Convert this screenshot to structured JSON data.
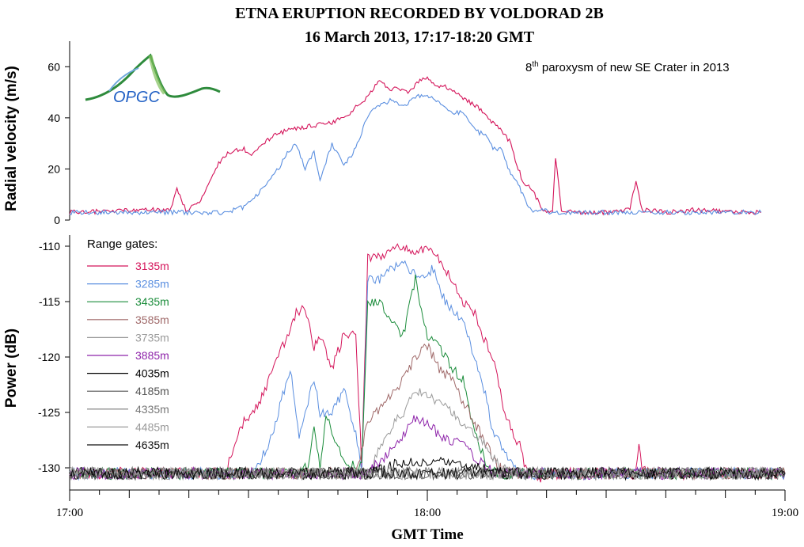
{
  "chart_data": {
    "type": "line",
    "title": "ETNA ERUPTION RECORDED BY VOLDORAD 2B",
    "subtitle": "16 March 2013, 17:17-18:20 GMT",
    "annotation": {
      "sup": "th",
      "base": "8",
      "text": " paroxysm of new SE Crater in 2013"
    },
    "logo_text": "OPGC",
    "xlabel": "GMT Time",
    "x_ticks": [
      "17:00",
      "18:00",
      "19:00"
    ],
    "xlim_minutes": [
      0,
      120
    ],
    "panels": [
      {
        "ylabel": "Radial velocity (m/s)",
        "ylim": [
          0,
          70
        ],
        "yticks": [
          0,
          20,
          40,
          60
        ],
        "series": [
          {
            "name": "3135m",
            "color": "#d4145a",
            "x": [
              0,
              14,
              17,
              18,
              19.5,
              20.5,
              22,
              25,
              26.5,
              29,
              30.5,
              33,
              35,
              38,
              41,
              44,
              47,
              50,
              52,
              53.5,
              55,
              57,
              58.5,
              60,
              61.5,
              63,
              66,
              69,
              71,
              72.5,
              74,
              75,
              76,
              77.5,
              78.5,
              79.5,
              81,
              81.5,
              82.5,
              83,
              84,
              86,
              90,
              94,
              95,
              96,
              100,
              105,
              112,
              116
            ],
            "y": [
              3,
              4,
              4,
              12,
              4,
              5,
              8,
              22,
              26,
              28,
              26,
              31,
              34,
              36,
              37,
              38,
              42,
              48,
              55,
              51,
              52,
              50,
              54,
              56,
              53,
              52,
              48,
              43,
              38,
              35,
              30,
              22,
              15,
              12,
              8,
              3,
              4,
              25,
              4,
              3,
              4,
              3,
              3,
              4,
              16,
              4,
              3,
              4,
              3,
              3
            ]
          },
          {
            "name": "3285m",
            "color": "#5b8fe0",
            "x": [
              0,
              26,
              29,
              31.5,
              33,
              35,
              36.5,
              38,
              39.5,
              41,
              42,
              44,
              46,
              48,
              50,
              52,
              54,
              56,
              58,
              60,
              62,
              64,
              66,
              68,
              70,
              71,
              72.5,
              73.5,
              75,
              76,
              77,
              78,
              79,
              81,
              83,
              90,
              100,
              116
            ],
            "y": [
              3,
              3,
              5,
              10,
              14,
              20,
              26,
              30,
              20,
              27,
              15,
              30,
              21,
              28,
              41,
              45,
              47,
              44,
              48,
              49,
              46,
              42,
              42,
              35,
              33,
              28,
              28,
              20,
              15,
              10,
              5,
              3,
              4,
              3,
              3,
              3,
              3,
              3
            ]
          }
        ]
      },
      {
        "ylabel": "Power (dB)",
        "ylim": [
          -132,
          -109
        ],
        "yticks": [
          -130,
          -125,
          -120,
          -115,
          -110
        ],
        "legend_title": "Range gates:",
        "series": [
          {
            "name": "3135m",
            "color": "#d4145a",
            "x": [
              0,
              26,
              29,
              32,
              35,
              38,
              39.5,
              41,
              42,
              44,
              46,
              48,
              49,
              50,
              52,
              55,
              58,
              60,
              63,
              66,
              68,
              70,
              71.5,
              73,
              74.5,
              75.5,
              76.5,
              77.5,
              79,
              80,
              85,
              90,
              95,
              95.5,
              96,
              100,
              120
            ],
            "y": [
              -130.5,
              -130.5,
              -126,
              -124,
              -120,
              -116,
              -115.5,
              -119,
              -118,
              -121,
              -118,
              -118,
              -130,
              -111,
              -111,
              -110,
              -110.5,
              -110,
              -112,
              -115,
              -116,
              -119,
              -121,
              -125,
              -127,
              -128,
              -130,
              -130.5,
              -131,
              -130.5,
              -130.5,
              -130.5,
              -130.5,
              -128,
              -130,
              -130.5,
              -130.5
            ]
          },
          {
            "name": "3285m",
            "color": "#5b8fe0",
            "x": [
              0,
              31,
              34,
              37,
              38.5,
              40,
              41,
              42,
              44,
              46,
              48,
              49,
              50,
              52,
              54,
              56,
              59,
              61,
              63,
              66,
              68,
              70,
              71,
              72.5,
              74,
              75,
              76,
              77,
              78,
              80,
              90,
              120
            ],
            "y": [
              -130.5,
              -130.5,
              -127,
              -121,
              -127,
              -124,
              -122,
              -125,
              -125,
              -123,
              -127,
              -130,
              -113,
              -113,
              -112,
              -111.5,
              -113,
              -112,
              -115,
              -117,
              -120,
              -124,
              -127,
              -128,
              -129.5,
              -130.5,
              -130.5,
              -130.5,
              -130.5,
              -130.5,
              -130.5,
              -130.5
            ]
          },
          {
            "name": "3435m",
            "color": "#1a8c3a",
            "x": [
              0,
              38,
              40,
              41,
              42,
              43,
              44,
              46,
              48,
              49,
              50,
              52,
              54,
              56,
              58,
              60,
              62,
              64,
              66,
              68,
              69.5,
              70.5,
              71.5,
              72,
              73,
              74,
              90,
              120
            ],
            "y": [
              -130.5,
              -130.5,
              -130,
              -126,
              -130,
              -125,
              -127,
              -129.5,
              -130,
              -130,
              -115,
              -115,
              -117,
              -118,
              -113,
              -118,
              -119,
              -121,
              -122,
              -127,
              -129,
              -130.5,
              -130.5,
              -130.5,
              -130.5,
              -130.5,
              -130.5,
              -130.5
            ]
          },
          {
            "name": "3585m",
            "color": "#a06a6a",
            "x": [
              0,
              48,
              50,
              53,
              56,
              58,
              60,
              62,
              64,
              66,
              68,
              70,
              72,
              74,
              120
            ],
            "y": [
              -130.5,
              -130.5,
              -126,
              -124,
              -122,
              -120,
              -119,
              -121,
              -122,
              -124,
              -126,
              -128,
              -130,
              -130.5,
              -130.5
            ]
          },
          {
            "name": "3735m",
            "color": "#9a9a9a",
            "x": [
              0,
              50,
              53,
              56,
              58,
              60,
              62,
              64,
              66,
              68,
              70,
              72,
              74,
              120
            ],
            "y": [
              -130.5,
              -130.5,
              -127,
              -125,
              -123,
              -123.5,
              -124,
              -125,
              -126,
              -127,
              -128,
              -130,
              -130.5,
              -130.5
            ]
          },
          {
            "name": "3885m",
            "color": "#8e24aa",
            "x": [
              0,
              50,
              53,
              56,
              58,
              60,
              62,
              64,
              66,
              68,
              70,
              72,
              120
            ],
            "y": [
              -130.5,
              -130.5,
              -129,
              -127,
              -125.5,
              -126,
              -127,
              -127.5,
              -128,
              -129,
              -130,
              -130.5,
              -130.5
            ]
          },
          {
            "name": "4035m",
            "color": "#000000",
            "x": [
              0,
              50,
              53,
              56,
              58,
              60,
              63,
              66,
              69,
              72,
              120
            ],
            "y": [
              -130.5,
              -130.5,
              -130,
              -129.5,
              -129.5,
              -129.5,
              -129.5,
              -130,
              -130,
              -130.5,
              -130.5
            ]
          },
          {
            "name": "4185m",
            "color": "#555555",
            "x": [
              0,
              120
            ],
            "y": [
              -130.5,
              -130.5
            ]
          },
          {
            "name": "4335m",
            "color": "#777777",
            "x": [
              0,
              120
            ],
            "y": [
              -130.5,
              -130.5
            ]
          },
          {
            "name": "4485m",
            "color": "#999999",
            "x": [
              0,
              120
            ],
            "y": [
              -130.5,
              -130.5
            ]
          },
          {
            "name": "4635m",
            "color": "#111111",
            "x": [
              0,
              120
            ],
            "y": [
              -130.5,
              -130.5
            ]
          }
        ]
      }
    ]
  }
}
